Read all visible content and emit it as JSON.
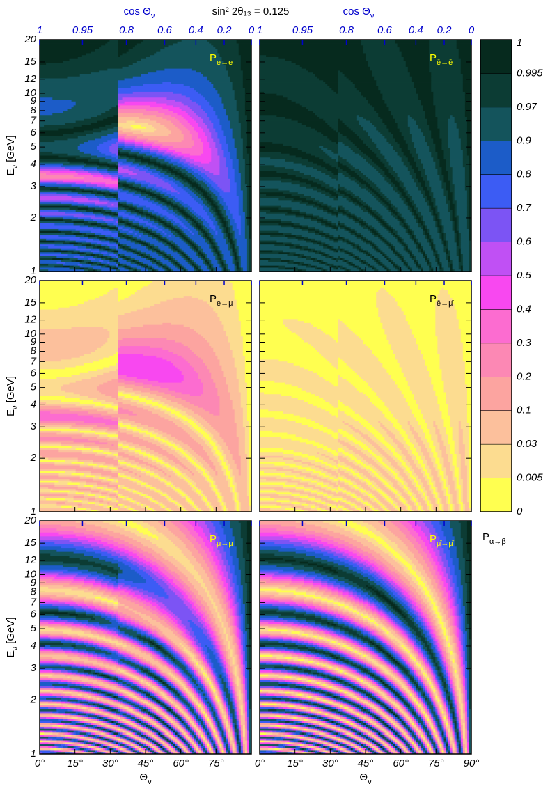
{
  "chart_data": {
    "type": "contour",
    "title": "sin² 2θ₁₃ = 0.125",
    "x2_label": {
      "text": "cos Θ",
      "sub": "ν"
    },
    "x_label": {
      "text": "Θ",
      "sub": "ν"
    },
    "y_label": {
      "text": "E",
      "sub": "ν",
      "rest": " [GeV]"
    },
    "xlim": [
      0,
      90
    ],
    "ylim": [
      1,
      20
    ],
    "log_y": true,
    "xticks": [
      {
        "value": 0,
        "label": "0°"
      },
      {
        "value": 15,
        "label": "15°"
      },
      {
        "value": 30,
        "label": "30°"
      },
      {
        "value": 45,
        "label": "45°"
      },
      {
        "value": 60,
        "label": "60°"
      },
      {
        "value": 75,
        "label": "75°"
      },
      {
        "value": 90,
        "label": "90°"
      }
    ],
    "x2ticks": [
      1,
      0.95,
      0.8,
      0.6,
      0.4,
      0.2,
      0
    ],
    "yticks": [
      1,
      2,
      3,
      4,
      5,
      6,
      7,
      8,
      9,
      10,
      12,
      15,
      20
    ],
    "panels": [
      {
        "label": {
          "text": "P",
          "sub": "e→e"
        }
      },
      {
        "label": {
          "text": "P",
          "sub": "ē→ē"
        }
      },
      {
        "label": {
          "text": "P",
          "sub": "e→μ"
        }
      },
      {
        "label": {
          "text": "P",
          "sub": "ē→μ̄"
        }
      },
      {
        "label": {
          "text": "P",
          "sub": "μ→μ"
        }
      },
      {
        "label": {
          "text": "P",
          "sub": "μ̄→μ̄"
        }
      }
    ],
    "colorbar": {
      "levels": [
        0,
        0.005,
        0.03,
        0.1,
        0.2,
        0.3,
        0.4,
        0.5,
        0.6,
        0.7,
        0.8,
        0.9,
        0.97,
        0.995,
        1
      ],
      "colors": [
        "#ffff50",
        "#fcdc90",
        "#fcc09c",
        "#fca4a0",
        "#fc88b4",
        "#fc6cd0",
        "#f848f0",
        "#c050f4",
        "#7c54f4",
        "#3c5cf4",
        "#1c5cc8",
        "#14545c",
        "#0c3c34",
        "#062a1e"
      ],
      "label": {
        "text": "P",
        "sub": "α→β"
      }
    }
  }
}
